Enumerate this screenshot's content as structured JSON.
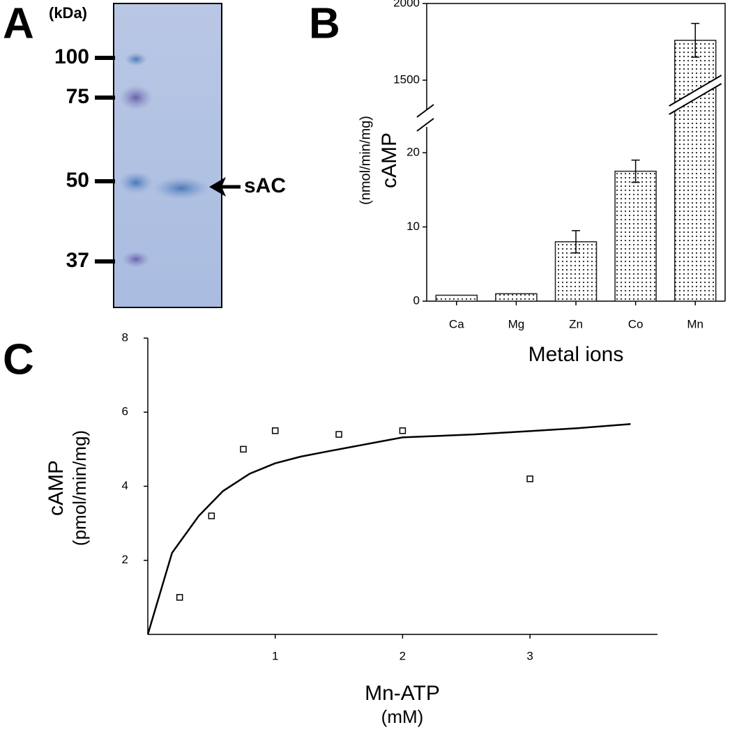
{
  "gel": {
    "panel_label": "A",
    "unit_label": "(kDa)",
    "markers": [
      "100",
      "75",
      "50",
      "37"
    ],
    "band_label": "sAC"
  },
  "chart_data": [
    {
      "type": "bar",
      "panel_label": "B",
      "y_label": "cAMP",
      "y_unit": "(nmol/min/mg)",
      "x_label": "Metal ions",
      "categories": [
        "Ca",
        "Mg",
        "Zn",
        "Co",
        "Mn"
      ],
      "values": [
        0.8,
        1.0,
        8.0,
        17.5,
        1760
      ],
      "errors": [
        0,
        0,
        1.5,
        1.5,
        110
      ],
      "ylim": [
        0,
        2000
      ],
      "axis_break": [
        24.6,
        1250
      ],
      "yticks": [
        0,
        10,
        20,
        1500,
        2000
      ],
      "color": "#222222"
    },
    {
      "type": "scatter",
      "panel_label": "C",
      "y_label": "cAMP",
      "y_unit": "(pmol/min/mg)",
      "x_label": "Mn-ATP",
      "x_unit": "(mM)",
      "x": [
        0.25,
        0.5,
        0.75,
        1.0,
        1.5,
        2.0,
        3.0
      ],
      "y": [
        1.0,
        3.2,
        5.0,
        5.5,
        5.4,
        5.5,
        4.2
      ],
      "fit_x": [
        0,
        0.19,
        0.4,
        0.59,
        0.8,
        1.0,
        1.2,
        1.41,
        2.0,
        2.56,
        3.0,
        3.38,
        3.79
      ],
      "fit_y": [
        0,
        2.2,
        3.2,
        3.87,
        4.34,
        4.62,
        4.8,
        4.94,
        5.32,
        5.4,
        5.49,
        5.57,
        5.68
      ],
      "xlim": [
        0,
        4
      ],
      "ylim": [
        0,
        8
      ],
      "xticks": [
        1,
        2,
        3
      ],
      "yticks": [
        2,
        4,
        6,
        8
      ],
      "color": "#000000"
    }
  ]
}
